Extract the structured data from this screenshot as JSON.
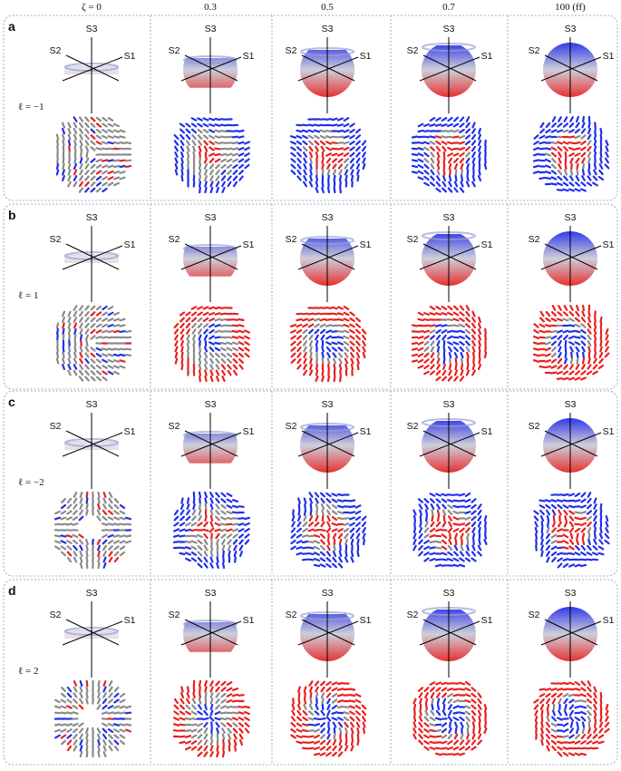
{
  "columns": [
    {
      "label": "ζ = 0"
    },
    {
      "label": "0.3"
    },
    {
      "label": "0.5"
    },
    {
      "label": "0.7"
    },
    {
      "label": "100 (ff)"
    }
  ],
  "rows": [
    {
      "letter": "a",
      "ell_label": "ℓ = −1",
      "ell": -1
    },
    {
      "letter": "b",
      "ell_label": "ℓ = 1",
      "ell": 1
    },
    {
      "letter": "c",
      "ell_label": "ℓ = −2",
      "ell": -2
    },
    {
      "letter": "d",
      "ell_label": "ℓ = 2",
      "ell": 2
    }
  ],
  "axes": {
    "s1": "S1",
    "s2": "S2",
    "s3": "S3"
  },
  "colors": {
    "positive_s3": "#1f2fe8",
    "negative_s3": "#e81f1f",
    "unpolarized": "#8a8a8a",
    "panel_border": "#7f9aab"
  }
}
